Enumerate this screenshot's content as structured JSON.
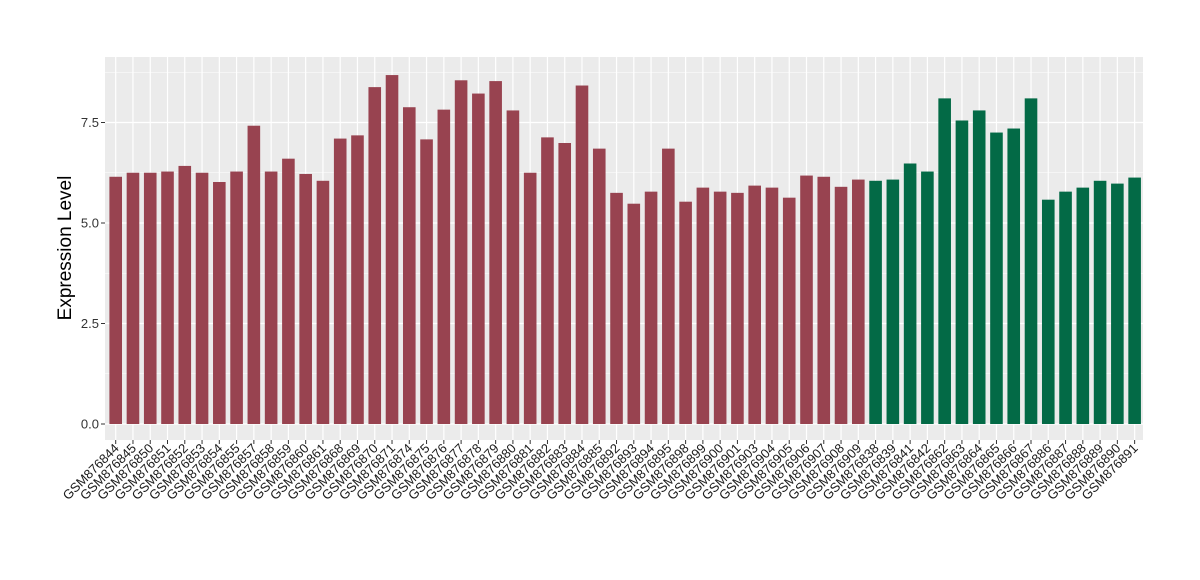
{
  "chart_data": {
    "type": "bar",
    "title": "",
    "xlabel": "",
    "ylabel": "Expression Level",
    "ylim": [
      0,
      9.1
    ],
    "yticks": [
      0.0,
      2.5,
      5.0,
      7.5
    ],
    "ytick_labels": [
      "0.0",
      "2.5",
      "5.0",
      "7.5"
    ],
    "grid": true,
    "legend": "none",
    "colors": {
      "group1": "#984350",
      "group2": "#036a46",
      "panel": "#ebebeb",
      "grid": "#ffffff"
    },
    "categories": [
      "GSM876844",
      "GSM876845",
      "GSM876850",
      "GSM876851",
      "GSM876852",
      "GSM876853",
      "GSM876854",
      "GSM876855",
      "GSM876857",
      "GSM876858",
      "GSM876859",
      "GSM876860",
      "GSM876861",
      "GSM876868",
      "GSM876869",
      "GSM876870",
      "GSM876871",
      "GSM876874",
      "GSM876875",
      "GSM876876",
      "GSM876877",
      "GSM876878",
      "GSM876879",
      "GSM876880",
      "GSM876881",
      "GSM876882",
      "GSM876883",
      "GSM876884",
      "GSM876885",
      "GSM876892",
      "GSM876893",
      "GSM876894",
      "GSM876895",
      "GSM876898",
      "GSM876899",
      "GSM876900",
      "GSM876901",
      "GSM876903",
      "GSM876904",
      "GSM876905",
      "GSM876906",
      "GSM876907",
      "GSM876908",
      "GSM876909",
      "GSM876838",
      "GSM876839",
      "GSM876841",
      "GSM876842",
      "GSM876862",
      "GSM876863",
      "GSM876864",
      "GSM876865",
      "GSM876866",
      "GSM876867",
      "GSM876886",
      "GSM876887",
      "GSM876888",
      "GSM876889",
      "GSM876890",
      "GSM876891"
    ],
    "values": [
      6.15,
      6.25,
      6.25,
      6.28,
      6.42,
      6.25,
      6.02,
      6.28,
      7.42,
      6.28,
      6.6,
      6.22,
      6.05,
      7.1,
      7.18,
      8.38,
      8.68,
      7.88,
      7.08,
      7.82,
      8.55,
      8.22,
      8.53,
      7.8,
      6.25,
      7.13,
      6.99,
      8.42,
      6.85,
      5.75,
      5.48,
      5.78,
      6.85,
      5.53,
      5.88,
      5.78,
      5.75,
      5.93,
      5.88,
      5.63,
      6.18,
      6.15,
      5.9,
      6.08,
      6.05,
      6.08,
      6.48,
      6.28,
      8.1,
      7.55,
      7.8,
      7.25,
      7.35,
      8.1,
      5.58,
      5.78,
      5.88,
      6.05,
      5.98,
      6.13
    ],
    "groups": [
      1,
      1,
      1,
      1,
      1,
      1,
      1,
      1,
      1,
      1,
      1,
      1,
      1,
      1,
      1,
      1,
      1,
      1,
      1,
      1,
      1,
      1,
      1,
      1,
      1,
      1,
      1,
      1,
      1,
      1,
      1,
      1,
      1,
      1,
      1,
      1,
      1,
      1,
      1,
      1,
      1,
      1,
      1,
      1,
      2,
      2,
      2,
      2,
      2,
      2,
      2,
      2,
      2,
      2,
      2,
      2,
      2,
      2,
      2,
      2
    ]
  }
}
